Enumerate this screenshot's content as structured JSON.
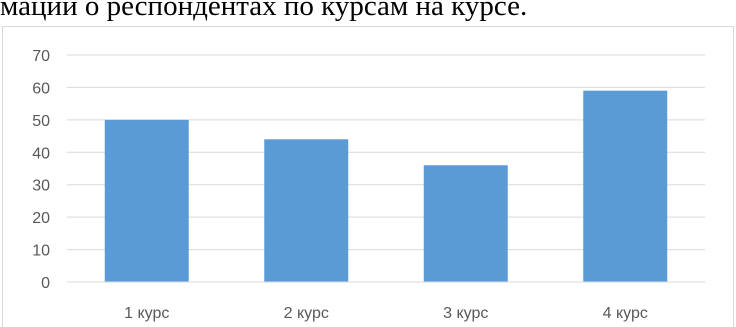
{
  "page": {
    "heading_text": "мации о респондентах по курсам на курсе."
  },
  "chart_data": {
    "type": "bar",
    "categories": [
      "1 курс",
      "2 курс",
      "3 курс",
      "4 курс"
    ],
    "values": [
      50,
      44,
      36,
      59
    ],
    "ylim": [
      0,
      70
    ],
    "yticks": [
      0,
      10,
      20,
      30,
      40,
      50,
      60,
      70
    ],
    "grid": true,
    "bar_color": "#5b9bd5",
    "gridline_color": "#d9d9d9",
    "title": "",
    "xlabel": "",
    "ylabel": ""
  }
}
